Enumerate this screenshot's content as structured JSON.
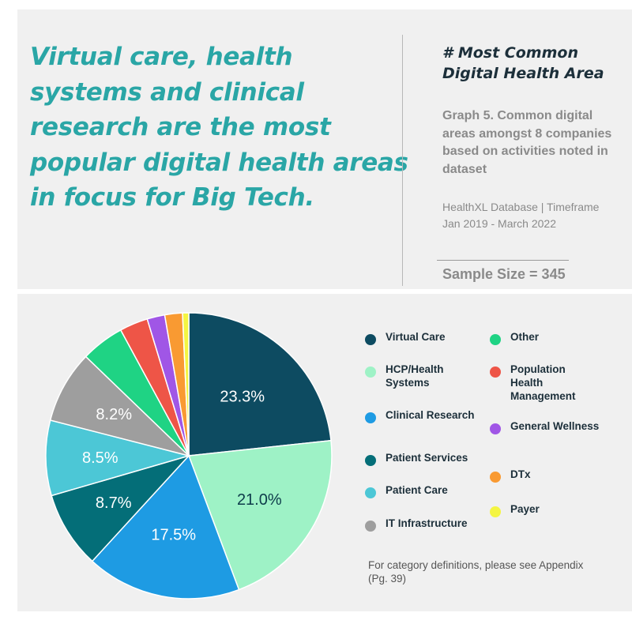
{
  "headline": "Virtual care, health systems and clinical research are the most popular digital health areas in focus for Big Tech.",
  "side_title": "# Most Common Digital Health Area",
  "caption": "Graph 5. Common digital areas amongst 8 companies based on activities noted in dataset",
  "source": "HealthXL Database | Timeframe Jan 2019 - March 2022",
  "sample_size": "Sample Size = 345",
  "footnote": "For category definitions, please see Appendix (Pg. 39)",
  "chart_data": {
    "type": "pie",
    "unit": "%",
    "slices": [
      {
        "name": "Virtual Care",
        "value": 23.3,
        "label": "23.3%",
        "color": "#0d4b61"
      },
      {
        "name": "HCP/Health Systems",
        "value": 21.0,
        "label": "21.0%",
        "color": "#9ef2c6"
      },
      {
        "name": "Clinical Research",
        "value": 17.5,
        "label": "17.5%",
        "color": "#1e9be3"
      },
      {
        "name": "Patient Services",
        "value": 8.7,
        "label": "8.7%",
        "color": "#046e78"
      },
      {
        "name": "Patient Care",
        "value": 8.5,
        "label": "8.5%",
        "color": "#4cc7d6"
      },
      {
        "name": "IT Infrastructure",
        "value": 8.2,
        "label": "8.2%",
        "color": "#9e9e9e"
      },
      {
        "name": "Other",
        "value": 4.9,
        "label": "",
        "color": "#1fd384"
      },
      {
        "name": "Population Health Management",
        "value": 3.2,
        "label": "",
        "color": "#ee5547"
      },
      {
        "name": "General Wellness",
        "value": 2.0,
        "label": "",
        "color": "#a056e6"
      },
      {
        "name": "DTx",
        "value": 2.0,
        "label": "",
        "color": "#f99a32"
      },
      {
        "name": "Payer",
        "value": 0.7,
        "label": "",
        "color": "#f4f542"
      }
    ],
    "legend": [
      {
        "label": "Virtual Care",
        "color": "#0d4b61"
      },
      {
        "label": "Other",
        "color": "#1fd384"
      },
      {
        "label": "HCP/Health Systems",
        "color": "#9ef2c6"
      },
      {
        "label": "Population Health Management",
        "color": "#ee5547"
      },
      {
        "label": "Clinical Research",
        "color": "#1e9be3"
      },
      {
        "label": "General Wellness",
        "color": "#a056e6"
      },
      {
        "label": "Patient Services",
        "color": "#046e78"
      },
      {
        "label": "DTx",
        "color": "#f99a32"
      },
      {
        "label": "Patient Care",
        "color": "#4cc7d6"
      },
      {
        "label": "Payer",
        "color": "#f4f542"
      },
      {
        "label": "IT Infrastructure",
        "color": "#9e9e9e"
      }
    ],
    "legend_placement": "right"
  }
}
